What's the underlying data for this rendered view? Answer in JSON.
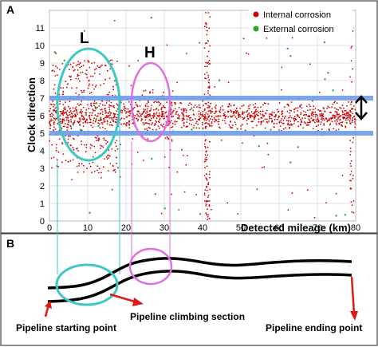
{
  "panel_a": {
    "label": "A",
    "ylabel": "Clock direction",
    "xlabel": "Detected mileage (km)",
    "y_ticks": [
      "0",
      "1",
      "2",
      "3",
      "4",
      "5",
      "6",
      "7",
      "8",
      "9",
      "10",
      "11"
    ],
    "x_ticks": [
      "0",
      "10",
      "20",
      "30",
      "40",
      "50",
      "60",
      "70",
      "80"
    ],
    "legend": {
      "internal": "Internal corrosion",
      "external": "External corrosion",
      "internal_color": "#cc0000",
      "external_color": "#22aa22"
    },
    "band_upper_clock": 7,
    "band_lower_clock": 5,
    "band_color": "#6f9be8",
    "marker_L": "L",
    "marker_H": "H",
    "ellipse_L_color": "#3ec9c0",
    "ellipse_H_color": "#e070e0"
  },
  "panel_b": {
    "label": "B",
    "start_label": "Pipeline starting point",
    "climb_label": "Pipeline climbing section",
    "end_label": "Pipeline ending point",
    "arrow_color": "#dd1a1a"
  },
  "chart_data": {
    "type": "scatter",
    "x_range": [
      0,
      80
    ],
    "y_range": [
      0,
      12
    ],
    "xlabel": "Detected mileage (km)",
    "ylabel": "Clock direction",
    "grid": true,
    "legend_position": "top-right",
    "series": [
      {
        "name": "Internal corrosion",
        "color": "#cc0000",
        "density_zones": [
          {
            "x": [
              0,
              80
            ],
            "y": [
              5,
              7
            ],
            "density": "very high"
          },
          {
            "x": [
              0,
              6
            ],
            "y": [
              3,
              9
            ],
            "density": "high"
          },
          {
            "x": [
              6,
              18
            ],
            "y": [
              2.7,
              9.2
            ],
            "density": "high"
          },
          {
            "x": [
              24,
              33
            ],
            "y": [
              4.5,
              7.5
            ],
            "density": "high"
          },
          {
            "x": [
              40.5,
              42
            ],
            "y": [
              0,
              12
            ],
            "density": "very high"
          },
          {
            "x": [
              78.5,
              79.5
            ],
            "y": [
              0,
              12
            ],
            "density": "high"
          },
          {
            "x": [
              0,
              80
            ],
            "y": [
              0,
              12
            ],
            "density": "sparse"
          }
        ]
      },
      {
        "name": "External corrosion",
        "color": "#22aa22",
        "density_zones": [
          {
            "x": [
              0,
              80
            ],
            "y": [
              0,
              12
            ],
            "density": "sparse"
          },
          {
            "x": [
              6,
              14
            ],
            "y": [
              5,
              7
            ],
            "density": "medium"
          }
        ]
      }
    ]
  }
}
